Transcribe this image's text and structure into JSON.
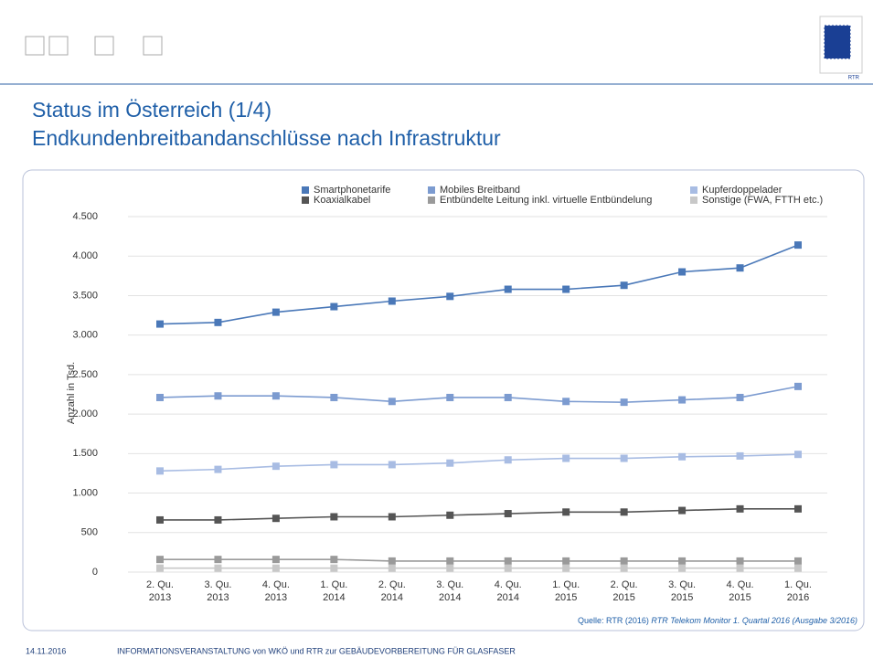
{
  "slide": {
    "title_line1": "Status im Österreich (1/4)",
    "title_line2": "Endkundenbreitbandanschlüsse nach Infrastruktur",
    "logo_label": "RTR",
    "source_prefix": "Quelle: RTR (2016)",
    "source_italic": "RTR Telekom Monitor 1. Quartal 2016 (Ausgabe 3/2016)",
    "footer_date": "14.11.2016",
    "footer_text": "INFORMATIONSVERANSTALTUNG von WKÖ und RTR zur GEBÄUDEVORBEREITUNG FÜR GLASFASER"
  },
  "chart_data": {
    "type": "line",
    "y_label": "Anzahl in Tsd.",
    "categories": [
      "2. Qu. 2013",
      "3. Qu. 2013",
      "4. Qu. 2013",
      "1. Qu. 2014",
      "2. Qu. 2014",
      "3. Qu. 2014",
      "4. Qu. 2014",
      "1. Qu. 2015",
      "2. Qu. 2015",
      "3. Qu. 2015",
      "4. Qu. 2015",
      "1. Qu. 2016"
    ],
    "series": [
      {
        "name": "Smartphonetarife",
        "color": "#4a78b8",
        "values": [
          3140,
          3160,
          3290,
          3360,
          3430,
          3490,
          3580,
          3580,
          3630,
          3800,
          3850,
          4140
        ]
      },
      {
        "name": "Mobiles Breitband",
        "color": "#7c9bd0",
        "values": [
          2210,
          2230,
          2230,
          2210,
          2160,
          2210,
          2210,
          2160,
          2150,
          2180,
          2210,
          2350
        ]
      },
      {
        "name": "Kupferdoppelader",
        "color": "#a8bce3",
        "values": [
          1280,
          1300,
          1340,
          1360,
          1360,
          1380,
          1420,
          1440,
          1440,
          1460,
          1470,
          1490
        ]
      },
      {
        "name": "Koaxialkabel",
        "color": "#555555",
        "values": [
          660,
          660,
          680,
          700,
          700,
          720,
          740,
          760,
          760,
          780,
          800,
          800
        ]
      },
      {
        "name": "Entbündelte Leitung inkl. virtuelle Entbündelung",
        "color": "#9a9a9a",
        "values": [
          160,
          160,
          160,
          160,
          140,
          140,
          140,
          140,
          140,
          140,
          140,
          140
        ]
      },
      {
        "name": "Sonstige (FWA, FTTH etc.)",
        "color": "#c8c8c8",
        "values": [
          50,
          50,
          50,
          50,
          50,
          50,
          50,
          50,
          50,
          50,
          50,
          50
        ]
      }
    ],
    "ylim": [
      0,
      4500
    ],
    "yticks": [
      0,
      500,
      {
        "value": 1000,
        "label": "1.000"
      },
      {
        "value": 1500,
        "label": "1.500"
      },
      {
        "value": 2000,
        "label": "2.000"
      },
      {
        "value": 2500,
        "label": "2.500"
      },
      {
        "value": 3000,
        "label": "3.000"
      },
      {
        "value": 3500,
        "label": "3.500"
      },
      {
        "value": 4000,
        "label": "4.000"
      },
      {
        "value": 4500,
        "label": "4.500"
      }
    ],
    "grid": true
  }
}
